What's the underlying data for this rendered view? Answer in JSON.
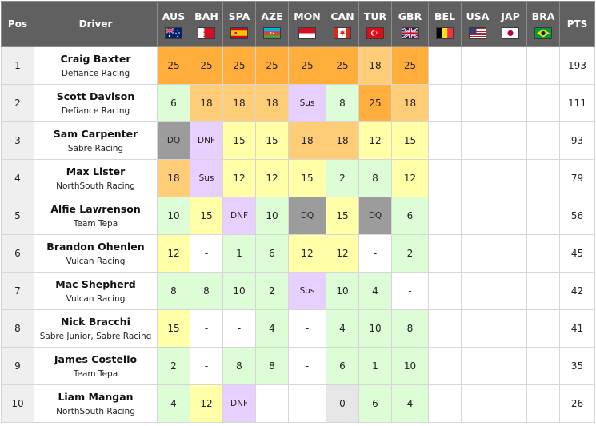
{
  "header": {
    "pos": "Pos",
    "driver": "Driver",
    "pts": "PTS",
    "races": [
      {
        "code": "AUS",
        "flag": "australia-flag"
      },
      {
        "code": "BAH",
        "flag": "bahrain-flag"
      },
      {
        "code": "SPA",
        "flag": "spain-flag"
      },
      {
        "code": "AZE",
        "flag": "azerbaijan-flag"
      },
      {
        "code": "MON",
        "flag": "monaco-flag"
      },
      {
        "code": "CAN",
        "flag": "canada-flag"
      },
      {
        "code": "TUR",
        "flag": "turkey-flag"
      },
      {
        "code": "GBR",
        "flag": "uk-flag"
      },
      {
        "code": "BEL",
        "flag": "belgium-flag"
      },
      {
        "code": "USA",
        "flag": "usa-flag"
      },
      {
        "code": "JAP",
        "flag": "japan-flag"
      },
      {
        "code": "BRA",
        "flag": "brazil-flag"
      }
    ]
  },
  "cell_colors": {
    "win": "#ffad3b",
    "podium": "#ffcc78",
    "points": "#ffffa8",
    "finished": "#dcfdd6",
    "no_points_dash": "#ffffff",
    "not_classified": "#e7d0ff",
    "disqualified": "#9c9c9c",
    "zero": "#e6e6e6"
  },
  "rows": [
    {
      "pos": "1",
      "name": "Craig Baxter",
      "team": "Defiance Racing",
      "pts": "193",
      "results": [
        "25",
        "25",
        "25",
        "25",
        "25",
        "25",
        "18",
        "25",
        "",
        "",
        "",
        ""
      ]
    },
    {
      "pos": "2",
      "name": "Scott Davison",
      "team": "Defiance Racing",
      "pts": "111",
      "results": [
        "6",
        "18",
        "18",
        "18",
        "Sus",
        "8",
        "25",
        "18",
        "",
        "",
        "",
        ""
      ]
    },
    {
      "pos": "3",
      "name": "Sam Carpenter",
      "team": "Sabre Racing",
      "pts": "93",
      "results": [
        "DQ",
        "DNF",
        "15",
        "15",
        "18",
        "18",
        "12",
        "15",
        "",
        "",
        "",
        ""
      ]
    },
    {
      "pos": "4",
      "name": "Max Lister",
      "team": "NorthSouth Racing",
      "pts": "79",
      "results": [
        "18",
        "Sus",
        "12",
        "12",
        "15",
        "2",
        "8",
        "12",
        "",
        "",
        "",
        ""
      ]
    },
    {
      "pos": "5",
      "name": "Alfie Lawrenson",
      "team": "Team Tepa",
      "pts": "56",
      "results": [
        "10",
        "15",
        "DNF",
        "10",
        "DQ",
        "15",
        "DQ",
        "6",
        "",
        "",
        "",
        ""
      ]
    },
    {
      "pos": "6",
      "name": "Brandon Ohenlen",
      "team": "Vulcan Racing",
      "pts": "45",
      "results": [
        "12",
        "-",
        "1",
        "6",
        "12",
        "12",
        "-",
        "2",
        "",
        "",
        "",
        ""
      ]
    },
    {
      "pos": "7",
      "name": "Mac Shepherd",
      "team": "Vulcan Racing",
      "pts": "42",
      "results": [
        "8",
        "8",
        "10",
        "2",
        "Sus",
        "10",
        "4",
        "-",
        "",
        "",
        "",
        ""
      ]
    },
    {
      "pos": "8",
      "name": "Nick Bracchi",
      "team": "Sabre Junior, Sabre Racing",
      "pts": "41",
      "results": [
        "15",
        "-",
        "-",
        "4",
        "-",
        "4",
        "10",
        "8",
        "",
        "",
        "",
        ""
      ]
    },
    {
      "pos": "9",
      "name": "James Costello",
      "team": "Team Tepa",
      "pts": "35",
      "results": [
        "2",
        "-",
        "8",
        "8",
        "-",
        "6",
        "1",
        "10",
        "",
        "",
        "",
        ""
      ]
    },
    {
      "pos": "10",
      "name": "Liam Mangan",
      "team": "NorthSouth Racing",
      "pts": "26",
      "results": [
        "4",
        "12",
        "DNF",
        "-",
        "-",
        "0",
        "6",
        "4",
        "",
        "",
        "",
        ""
      ]
    }
  ]
}
